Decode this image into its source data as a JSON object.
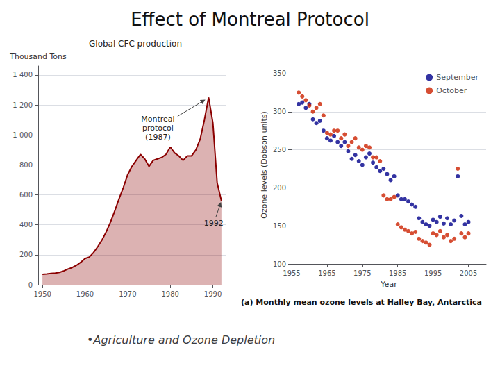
{
  "title": "Effect of Montreal Protocol",
  "subtitle": "•Agriculture and Ozone Depletion",
  "chart_data": [
    {
      "type": "area",
      "title": "Global CFC production",
      "ylabel": "Thousand Tons",
      "x": [
        1950,
        1951,
        1952,
        1953,
        1954,
        1955,
        1956,
        1957,
        1958,
        1959,
        1960,
        1961,
        1962,
        1963,
        1964,
        1965,
        1966,
        1967,
        1968,
        1969,
        1970,
        1971,
        1972,
        1973,
        1974,
        1975,
        1976,
        1977,
        1978,
        1979,
        1980,
        1981,
        1982,
        1983,
        1984,
        1985,
        1986,
        1987,
        1988,
        1989,
        1990,
        1991,
        1992
      ],
      "values": [
        70,
        72,
        75,
        78,
        82,
        92,
        105,
        115,
        130,
        150,
        175,
        185,
        215,
        255,
        300,
        355,
        420,
        495,
        575,
        650,
        735,
        790,
        830,
        870,
        840,
        790,
        830,
        840,
        850,
        870,
        920,
        880,
        860,
        830,
        860,
        860,
        900,
        970,
        1100,
        1250,
        1080,
        680,
        560
      ],
      "color": "#8b0000",
      "xlim": [
        1949,
        1993
      ],
      "xticks": [
        1950,
        1960,
        1970,
        1980,
        1990
      ],
      "ylim": [
        0,
        1460
      ],
      "yticks": [
        0,
        200,
        400,
        600,
        800,
        {
          "value": 1000,
          "label": "1 000"
        },
        {
          "value": 1200,
          "label": "1 200"
        },
        {
          "value": 1400,
          "label": "1 400"
        }
      ],
      "grid": true,
      "annotations": [
        {
          "text": "Montreal\nprotocol\n(1987)",
          "x": 1988.5,
          "y": 1240
        },
        {
          "text": "1992",
          "x": 1992,
          "y": 560
        }
      ]
    },
    {
      "type": "scatter",
      "subtitle": "(a) Monthly mean ozone levels at Halley Bay, Antarctica",
      "xlabel": "Year",
      "ylabel": "Ozone levels (Dobson units)",
      "x": [
        1957,
        1958,
        1959,
        1960,
        1961,
        1962,
        1963,
        1964,
        1965,
        1966,
        1967,
        1968,
        1969,
        1970,
        1971,
        1972,
        1973,
        1974,
        1975,
        1976,
        1977,
        1978,
        1979,
        1980,
        1981,
        1982,
        1983,
        1984,
        1985,
        1986,
        1987,
        1988,
        1989,
        1990,
        1991,
        1992,
        1993,
        1994,
        1995,
        1996,
        1997,
        1998,
        1999,
        2000,
        2001,
        2002,
        2003,
        2004,
        2005
      ],
      "series": [
        {
          "name": "September",
          "color": "#00008b",
          "values": [
            310,
            312,
            305,
            310,
            290,
            285,
            288,
            275,
            265,
            262,
            268,
            260,
            255,
            260,
            248,
            238,
            243,
            235,
            230,
            240,
            245,
            233,
            227,
            222,
            225,
            218,
            210,
            215,
            190,
            185,
            185,
            182,
            178,
            175,
            160,
            155,
            152,
            150,
            158,
            155,
            162,
            153,
            160,
            152,
            157,
            215,
            163,
            152,
            155
          ]
        },
        {
          "name": "October",
          "color": "#cc2200",
          "values": [
            325,
            320,
            315,
            308,
            300,
            305,
            310,
            295,
            272,
            270,
            275,
            275,
            265,
            270,
            255,
            260,
            265,
            253,
            250,
            255,
            253,
            240,
            240,
            235,
            190,
            185,
            185,
            188,
            152,
            148,
            145,
            143,
            140,
            142,
            133,
            130,
            128,
            125,
            140,
            138,
            143,
            135,
            138,
            130,
            133,
            225,
            140,
            135,
            140
          ]
        }
      ],
      "xlim": [
        1955,
        2010
      ],
      "xticks": [
        1955,
        1965,
        1975,
        1985,
        1995,
        2005
      ],
      "ylim": [
        100,
        360
      ],
      "yticks": [
        100,
        150,
        200,
        250,
        300,
        350
      ],
      "grid": true,
      "legend": "upper right"
    }
  ]
}
